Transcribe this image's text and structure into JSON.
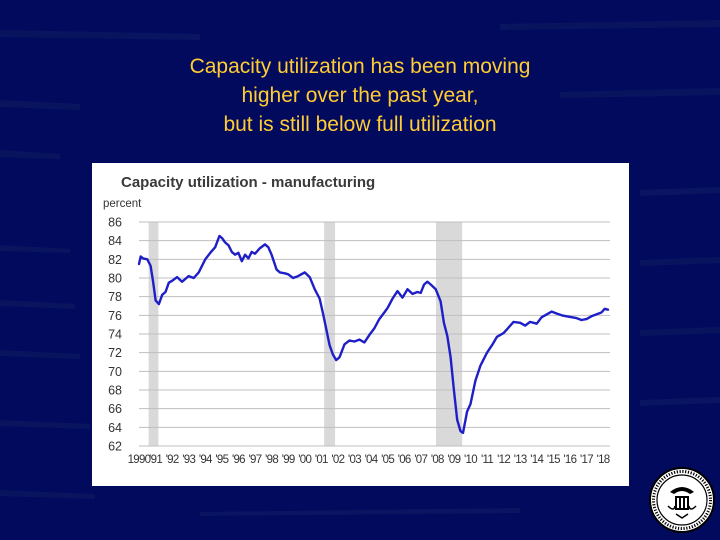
{
  "slide": {
    "title_lines": [
      "Capacity utilization has been moving",
      "higher over the past year,",
      "but is still below full utilization"
    ],
    "title_color": "#ffcc33",
    "background_color": "#020a5e"
  },
  "chart_data": {
    "type": "line",
    "title": "Capacity utilization - manufacturing",
    "ylabel": "percent",
    "xlabel": "",
    "ylim": [
      62,
      86
    ],
    "yticks": [
      62,
      64,
      66,
      68,
      70,
      72,
      74,
      76,
      78,
      80,
      82,
      84,
      86
    ],
    "xlim": [
      1990.0,
      2018.42
    ],
    "xtick_labels": [
      "1990",
      "'91",
      "'92",
      "'93",
      "'94",
      "'95",
      "'96",
      "'97",
      "'98",
      "'99",
      "'00",
      "'01",
      "'02",
      "'03",
      "'04",
      "'05",
      "'06",
      "'07",
      "'08",
      "'09",
      "'10",
      "'11",
      "'12",
      "'13",
      "'14",
      "'15",
      "'16",
      "'17",
      "'18"
    ],
    "grid": true,
    "legend": "none",
    "series_color": "#1f1fc8",
    "shading_color": "#d9d9d9",
    "recessions": [
      [
        1990.58,
        1991.17
      ],
      [
        2001.17,
        2001.83
      ],
      [
        2007.92,
        2009.5
      ]
    ],
    "series": [
      {
        "x": [
          1990.0,
          1990.1,
          1990.25,
          1990.5,
          1990.7,
          1990.85,
          1991.0,
          1991.2,
          1991.4,
          1991.6,
          1991.8,
          1992.0,
          1992.3,
          1992.6,
          1993.0,
          1993.3,
          1993.6,
          1994.0,
          1994.3,
          1994.6,
          1994.85,
          1995.0,
          1995.2,
          1995.4,
          1995.6,
          1995.8,
          1996.0,
          1996.2,
          1996.4,
          1996.6,
          1996.8,
          1997.0,
          1997.3,
          1997.6,
          1997.8,
          1998.0,
          1998.3,
          1998.5,
          1998.8,
          1999.0,
          1999.3,
          1999.6,
          2000.0,
          2000.3,
          2000.6,
          2000.9,
          2001.1,
          2001.3,
          2001.5,
          2001.7,
          2001.9,
          2002.1,
          2002.4,
          2002.7,
          2003.0,
          2003.3,
          2003.6,
          2003.9,
          2004.2,
          2004.5,
          2004.8,
          2005.0,
          2005.3,
          2005.6,
          2005.9,
          2006.2,
          2006.5,
          2006.8,
          2007.0,
          2007.2,
          2007.4,
          2007.6,
          2007.9,
          2008.2,
          2008.4,
          2008.6,
          2008.8,
          2009.0,
          2009.2,
          2009.4,
          2009.55,
          2009.8,
          2010.0,
          2010.3,
          2010.6,
          2011.0,
          2011.3,
          2011.6,
          2012.0,
          2012.3,
          2012.6,
          2013.0,
          2013.3,
          2013.6,
          2014.0,
          2014.3,
          2014.6,
          2014.9,
          2015.2,
          2015.5,
          2015.8,
          2016.1,
          2016.4,
          2016.7,
          2017.0,
          2017.3,
          2017.6,
          2017.9,
          2018.1,
          2018.3
        ],
        "y": [
          81.5,
          82.3,
          82.1,
          82.0,
          81.3,
          79.6,
          77.6,
          77.2,
          78.2,
          78.5,
          79.5,
          79.7,
          80.1,
          79.6,
          80.2,
          80.0,
          80.6,
          82.0,
          82.7,
          83.3,
          84.5,
          84.3,
          83.8,
          83.5,
          82.8,
          82.5,
          82.7,
          81.8,
          82.5,
          82.1,
          82.8,
          82.6,
          83.2,
          83.6,
          83.3,
          82.5,
          80.9,
          80.6,
          80.5,
          80.4,
          80.0,
          80.2,
          80.6,
          80.1,
          78.8,
          77.8,
          76.2,
          74.5,
          72.8,
          71.8,
          71.2,
          71.5,
          72.9,
          73.3,
          73.2,
          73.4,
          73.1,
          73.9,
          74.6,
          75.6,
          76.3,
          76.8,
          77.8,
          78.6,
          77.9,
          78.8,
          78.3,
          78.5,
          78.4,
          79.3,
          79.6,
          79.3,
          78.8,
          77.5,
          75.2,
          73.8,
          71.5,
          68.0,
          64.8,
          63.6,
          63.4,
          65.7,
          66.5,
          69.0,
          70.6,
          72.0,
          72.8,
          73.7,
          74.1,
          74.7,
          75.3,
          75.2,
          74.9,
          75.3,
          75.1,
          75.8,
          76.1,
          76.4,
          76.2,
          76.0,
          75.9,
          75.8,
          75.7,
          75.5,
          75.6,
          75.9,
          76.1,
          76.3,
          76.7,
          76.6
        ]
      }
    ]
  }
}
